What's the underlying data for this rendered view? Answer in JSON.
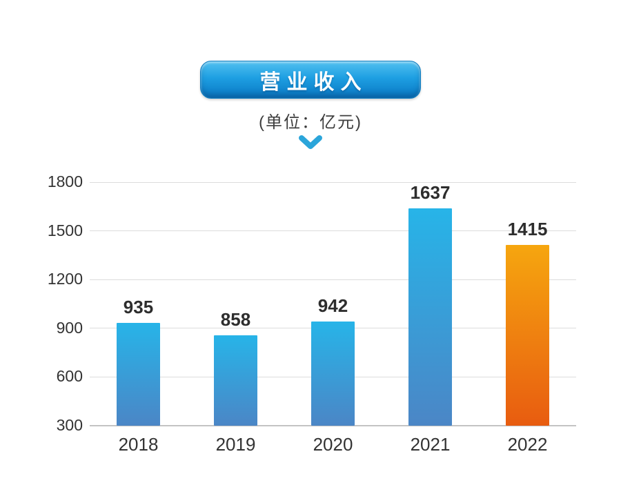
{
  "header": {
    "title": "营业收入",
    "subtitle": "(单位：亿元)",
    "chevron_icon": "chevron-down",
    "pill_top_color": "#52c1f0",
    "pill_bottom_color": "#0c74bd",
    "chevron_color": "#2ba5da"
  },
  "chart_data": {
    "type": "bar",
    "title": "营业收入",
    "subtitle": "(单位：亿元)",
    "xlabel": "",
    "ylabel": "",
    "categories": [
      "2018",
      "2019",
      "2020",
      "2021",
      "2022"
    ],
    "values": [
      935,
      858,
      942,
      1637,
      1415
    ],
    "ylim": [
      300,
      1800
    ],
    "yticks": [
      300,
      600,
      900,
      1200,
      1500,
      1800
    ],
    "grid": true,
    "legend": "none",
    "bar_style": {
      "default_gradient_top": "#27b4e8",
      "default_gradient_bottom": "#4b86c6",
      "highlight_gradient_top": "#f6a60f",
      "highlight_gradient_bottom": "#e85c10",
      "highlight_index": 4
    }
  },
  "colors": {
    "background": "#ffffff",
    "gridline": "#dcdcdc",
    "axis_baseline": "#c3c3c3",
    "tick_label": "#333333",
    "value_label": "#2d2d2d"
  }
}
